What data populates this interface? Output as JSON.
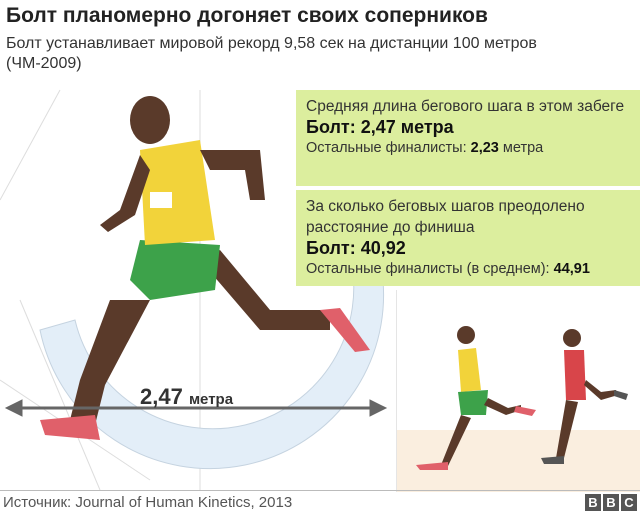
{
  "header": {
    "title": "Болт планомерно догоняет своих соперников",
    "subtitle": "Болт устанавливает мировой рекорд 9,58 сек на дистанции 100 метров (ЧМ-2009)"
  },
  "stride_box": {
    "question": "Средняя длина бегового шага в этом забеге",
    "bolt": "Болт: 2,47 метра",
    "others_label": "Остальные финалисты: ",
    "others_value": "2,23",
    "others_unit": " метра"
  },
  "steps_box": {
    "question": "За сколько беговых шагов преодолено расстояние до финиша",
    "bolt": "Болт: 40,92",
    "others_label": "Остальные финалисты (в среднем): ",
    "others_value": "44,91"
  },
  "measure": {
    "value": "2,47",
    "unit": "метра"
  },
  "footer": {
    "source": "Источник: Journal of Human Kinetics, 2013",
    "logo": [
      "B",
      "B",
      "C"
    ]
  },
  "colors": {
    "box": "#dcee9e",
    "jersey": "#f2d33a",
    "shorts": "#3da24a",
    "shoe": "#e0606a",
    "arc": "#e3eef8"
  }
}
